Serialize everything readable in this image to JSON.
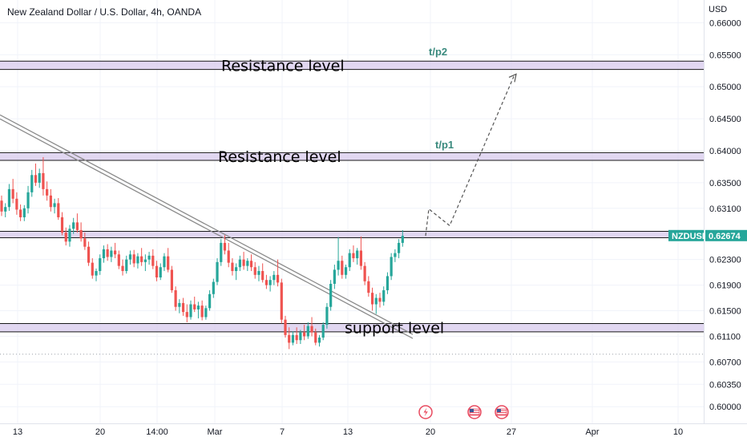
{
  "chart_data": {
    "type": "candlestick",
    "title": "New Zealand Dollar / U.S. Dollar, 4h, OANDA",
    "currency": "USD",
    "symbol": "NZDUSD",
    "last_price": "0.62674",
    "colors": {
      "up": "#26a69a",
      "down": "#ef5350",
      "zone_fill": "#d7c9ec",
      "projection": "#555555",
      "trendline": "#8a8a8a",
      "tp_text": "#3a8a7e"
    },
    "y_axis": {
      "range": [
        0.5984,
        0.6623
      ],
      "ticks": [
        "0.66000",
        "0.65500",
        "0.65000",
        "0.64500",
        "0.64000",
        "0.63500",
        "0.63100",
        "0.62674",
        "0.62300",
        "0.61900",
        "0.61500",
        "0.61100",
        "0.60700",
        "0.60350",
        "0.60000"
      ]
    },
    "x_axis": {
      "ticks": [
        "13",
        "20",
        "14:00",
        "Mar",
        "7",
        "13",
        "20",
        "27",
        "Apr",
        "10"
      ]
    },
    "zones": [
      {
        "name": "resistance-zone-2",
        "label": "Resistance level",
        "top": 0.654,
        "bottom": 0.6527
      },
      {
        "name": "resistance-zone-1",
        "label": "Resistance level",
        "top": 0.6397,
        "bottom": 0.6385
      },
      {
        "name": "current-price-zone",
        "label": "",
        "top": 0.6274,
        "bottom": 0.6264
      },
      {
        "name": "support-zone",
        "label": "support level",
        "top": 0.613,
        "bottom": 0.6117
      }
    ],
    "targets": [
      {
        "label": "t/p2",
        "price": 0.6554
      },
      {
        "label": "t/p1",
        "price": 0.6409
      }
    ],
    "trendline": {
      "start": 0.6456,
      "end": 0.6113
    },
    "projection_path": [
      0.6267,
      0.6309,
      0.6283,
      0.6516
    ],
    "candles": [
      [
        0.6322,
        0.633,
        0.6298,
        0.6305
      ],
      [
        0.6305,
        0.6318,
        0.6296,
        0.6312
      ],
      [
        0.6312,
        0.6348,
        0.6306,
        0.634
      ],
      [
        0.634,
        0.6356,
        0.6318,
        0.6325
      ],
      [
        0.6325,
        0.6335,
        0.63,
        0.6308
      ],
      [
        0.6308,
        0.6316,
        0.629,
        0.6296
      ],
      [
        0.6296,
        0.6315,
        0.629,
        0.631
      ],
      [
        0.631,
        0.6345,
        0.6302,
        0.6335
      ],
      [
        0.6335,
        0.637,
        0.6328,
        0.6362
      ],
      [
        0.6362,
        0.638,
        0.6345,
        0.635
      ],
      [
        0.635,
        0.6372,
        0.6342,
        0.6365
      ],
      [
        0.6365,
        0.639,
        0.633,
        0.634
      ],
      [
        0.634,
        0.6352,
        0.6322,
        0.633
      ],
      [
        0.633,
        0.634,
        0.6305,
        0.6312
      ],
      [
        0.6312,
        0.6325,
        0.6302,
        0.6318
      ],
      [
        0.6318,
        0.6326,
        0.6292,
        0.6296
      ],
      [
        0.6296,
        0.6304,
        0.6268,
        0.6272
      ],
      [
        0.6272,
        0.628,
        0.6252,
        0.6258
      ],
      [
        0.6258,
        0.6284,
        0.625,
        0.6278
      ],
      [
        0.6278,
        0.6295,
        0.627,
        0.6288
      ],
      [
        0.6288,
        0.6302,
        0.6272,
        0.6276
      ],
      [
        0.6276,
        0.6288,
        0.6258,
        0.6263
      ],
      [
        0.6263,
        0.6272,
        0.6245,
        0.625
      ],
      [
        0.625,
        0.6258,
        0.622,
        0.6225
      ],
      [
        0.6225,
        0.6232,
        0.62,
        0.6205
      ],
      [
        0.6205,
        0.6216,
        0.6196,
        0.6212
      ],
      [
        0.6212,
        0.6238,
        0.6206,
        0.6232
      ],
      [
        0.6232,
        0.6252,
        0.6225,
        0.6246
      ],
      [
        0.6246,
        0.6254,
        0.6228,
        0.6234
      ],
      [
        0.6234,
        0.625,
        0.6226,
        0.6244
      ],
      [
        0.6244,
        0.6256,
        0.6232,
        0.6238
      ],
      [
        0.6238,
        0.6244,
        0.6215,
        0.622
      ],
      [
        0.622,
        0.623,
        0.6205,
        0.6212
      ],
      [
        0.6212,
        0.6236,
        0.6208,
        0.623
      ],
      [
        0.623,
        0.6244,
        0.6222,
        0.6238
      ],
      [
        0.6238,
        0.6245,
        0.6218,
        0.6224
      ],
      [
        0.6224,
        0.624,
        0.6216,
        0.6235
      ],
      [
        0.6235,
        0.6248,
        0.622,
        0.6226
      ],
      [
        0.6226,
        0.6238,
        0.6212,
        0.623
      ],
      [
        0.623,
        0.6242,
        0.6222,
        0.6236
      ],
      [
        0.6236,
        0.6246,
        0.6215,
        0.622
      ],
      [
        0.622,
        0.6228,
        0.6196,
        0.6202
      ],
      [
        0.6202,
        0.6224,
        0.6198,
        0.6218
      ],
      [
        0.6218,
        0.624,
        0.6212,
        0.6235
      ],
      [
        0.6235,
        0.6248,
        0.621,
        0.6214
      ],
      [
        0.6214,
        0.622,
        0.6178,
        0.6182
      ],
      [
        0.6182,
        0.6188,
        0.615,
        0.6156
      ],
      [
        0.6156,
        0.6168,
        0.6146,
        0.6162
      ],
      [
        0.6162,
        0.617,
        0.6142,
        0.6148
      ],
      [
        0.6148,
        0.616,
        0.6132,
        0.614
      ],
      [
        0.614,
        0.6166,
        0.6136,
        0.616
      ],
      [
        0.616,
        0.6172,
        0.6148,
        0.6152
      ],
      [
        0.6152,
        0.6164,
        0.6138,
        0.6158
      ],
      [
        0.6158,
        0.6166,
        0.6135,
        0.614
      ],
      [
        0.614,
        0.6158,
        0.6136,
        0.6154
      ],
      [
        0.6154,
        0.6182,
        0.615,
        0.6176
      ],
      [
        0.6176,
        0.62,
        0.617,
        0.6195
      ],
      [
        0.6195,
        0.6232,
        0.619,
        0.6226
      ],
      [
        0.6226,
        0.6262,
        0.622,
        0.6256
      ],
      [
        0.6256,
        0.6268,
        0.6238,
        0.6244
      ],
      [
        0.6244,
        0.6256,
        0.6218,
        0.6225
      ],
      [
        0.6225,
        0.6232,
        0.6205,
        0.6212
      ],
      [
        0.6212,
        0.6224,
        0.6198,
        0.6218
      ],
      [
        0.6218,
        0.6236,
        0.6212,
        0.623
      ],
      [
        0.623,
        0.6242,
        0.6214,
        0.622
      ],
      [
        0.622,
        0.6232,
        0.6212,
        0.6228
      ],
      [
        0.6228,
        0.6238,
        0.6212,
        0.6218
      ],
      [
        0.6218,
        0.6226,
        0.62,
        0.6206
      ],
      [
        0.6206,
        0.622,
        0.6196,
        0.6212
      ],
      [
        0.6212,
        0.6224,
        0.6194,
        0.6198
      ],
      [
        0.6198,
        0.6206,
        0.6184,
        0.619
      ],
      [
        0.619,
        0.6204,
        0.618,
        0.6198
      ],
      [
        0.6198,
        0.6212,
        0.619,
        0.6206
      ],
      [
        0.6206,
        0.623,
        0.6188,
        0.6194
      ],
      [
        0.6194,
        0.62,
        0.613,
        0.6136
      ],
      [
        0.6136,
        0.6142,
        0.6108,
        0.6112
      ],
      [
        0.6112,
        0.6124,
        0.609,
        0.61
      ],
      [
        0.61,
        0.6118,
        0.6096,
        0.6112
      ],
      [
        0.6112,
        0.6124,
        0.6098,
        0.6104
      ],
      [
        0.6104,
        0.612,
        0.6098,
        0.6116
      ],
      [
        0.6116,
        0.6128,
        0.6104,
        0.611
      ],
      [
        0.611,
        0.6132,
        0.6106,
        0.6126
      ],
      [
        0.6126,
        0.614,
        0.611,
        0.6116
      ],
      [
        0.6116,
        0.6122,
        0.6096,
        0.61
      ],
      [
        0.61,
        0.6112,
        0.6094,
        0.6108
      ],
      [
        0.6108,
        0.6132,
        0.6104,
        0.6128
      ],
      [
        0.6128,
        0.6162,
        0.6122,
        0.6156
      ],
      [
        0.6156,
        0.6198,
        0.615,
        0.6192
      ],
      [
        0.6192,
        0.6222,
        0.6184,
        0.6214
      ],
      [
        0.6214,
        0.6265,
        0.6205,
        0.6228
      ],
      [
        0.6228,
        0.6236,
        0.62,
        0.6206
      ],
      [
        0.6206,
        0.6222,
        0.62,
        0.6218
      ],
      [
        0.6218,
        0.6246,
        0.6212,
        0.624
      ],
      [
        0.624,
        0.6252,
        0.6226,
        0.6232
      ],
      [
        0.6232,
        0.6248,
        0.6222,
        0.6244
      ],
      [
        0.6244,
        0.6266,
        0.6214,
        0.622
      ],
      [
        0.622,
        0.6226,
        0.619,
        0.6196
      ],
      [
        0.6196,
        0.6204,
        0.6172,
        0.6178
      ],
      [
        0.6178,
        0.6186,
        0.615,
        0.616
      ],
      [
        0.616,
        0.6176,
        0.6145,
        0.617
      ],
      [
        0.617,
        0.6178,
        0.6155,
        0.6164
      ],
      [
        0.6164,
        0.6188,
        0.6158,
        0.6182
      ],
      [
        0.6182,
        0.621,
        0.6176,
        0.6204
      ],
      [
        0.6204,
        0.624,
        0.6198,
        0.6234
      ],
      [
        0.6234,
        0.6246,
        0.6226,
        0.624
      ],
      [
        0.624,
        0.6262,
        0.6232,
        0.6256
      ],
      [
        0.6256,
        0.6276,
        0.625,
        0.6267
      ]
    ]
  },
  "events": [
    "lightning-event-icon",
    "us-flag-event-icon",
    "us-flag-event-icon"
  ]
}
